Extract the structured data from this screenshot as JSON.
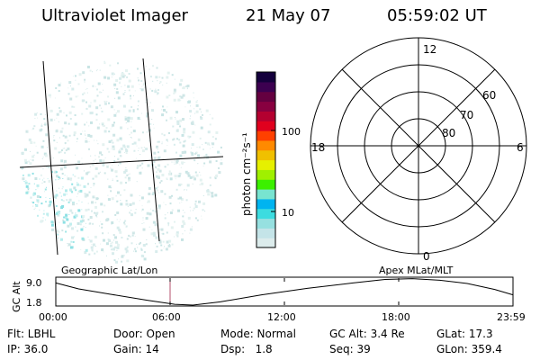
{
  "header": {
    "instrument": "Ultraviolet Imager",
    "date": "21 May 07",
    "time": "05:59:02 UT"
  },
  "colorbar": {
    "unit_label": "photon cm⁻²s⁻¹",
    "tick_labels": [
      "100",
      "10"
    ],
    "colors": [
      "#dcecec",
      "#c4e4e8",
      "#96e0e0",
      "#3cdce0",
      "#00b4f0",
      "#78e4d0",
      "#3cf000",
      "#a0f000",
      "#e6f000",
      "#f0c000",
      "#ff8a00",
      "#ff4000",
      "#e0001e",
      "#b40030",
      "#880040",
      "#640040",
      "#3c0050",
      "#14003c"
    ]
  },
  "polar_plot": {
    "mlt_labels": {
      "top": "12",
      "right": "6",
      "bottom": "0",
      "left": "18"
    },
    "lat_labels": [
      "80",
      "70",
      "60"
    ]
  },
  "altitude_plot": {
    "ylabel": "GC Alt",
    "yticks": [
      "9.0",
      "1.8"
    ],
    "left_title": "Geographic Lat/Lon",
    "right_title": "Apex MLat/MLT",
    "xticks": [
      "00:00",
      "06:00",
      "12:00",
      "18:00",
      "23:59"
    ],
    "current_time_fraction": 0.25,
    "accent_color": "#b4506e"
  },
  "info": {
    "filter": "Flt: LBHL",
    "ip": "IP: 36.0",
    "door": "Door: Open",
    "gain": "Gain: 14",
    "mode": "Mode: Normal",
    "dsp": "Dsp:   1.8",
    "gc_alt": "GC Alt: 3.4 Re",
    "seq": "Seq: 39",
    "glat": "GLat: 17.3",
    "glon": "GLon: 359.4"
  }
}
